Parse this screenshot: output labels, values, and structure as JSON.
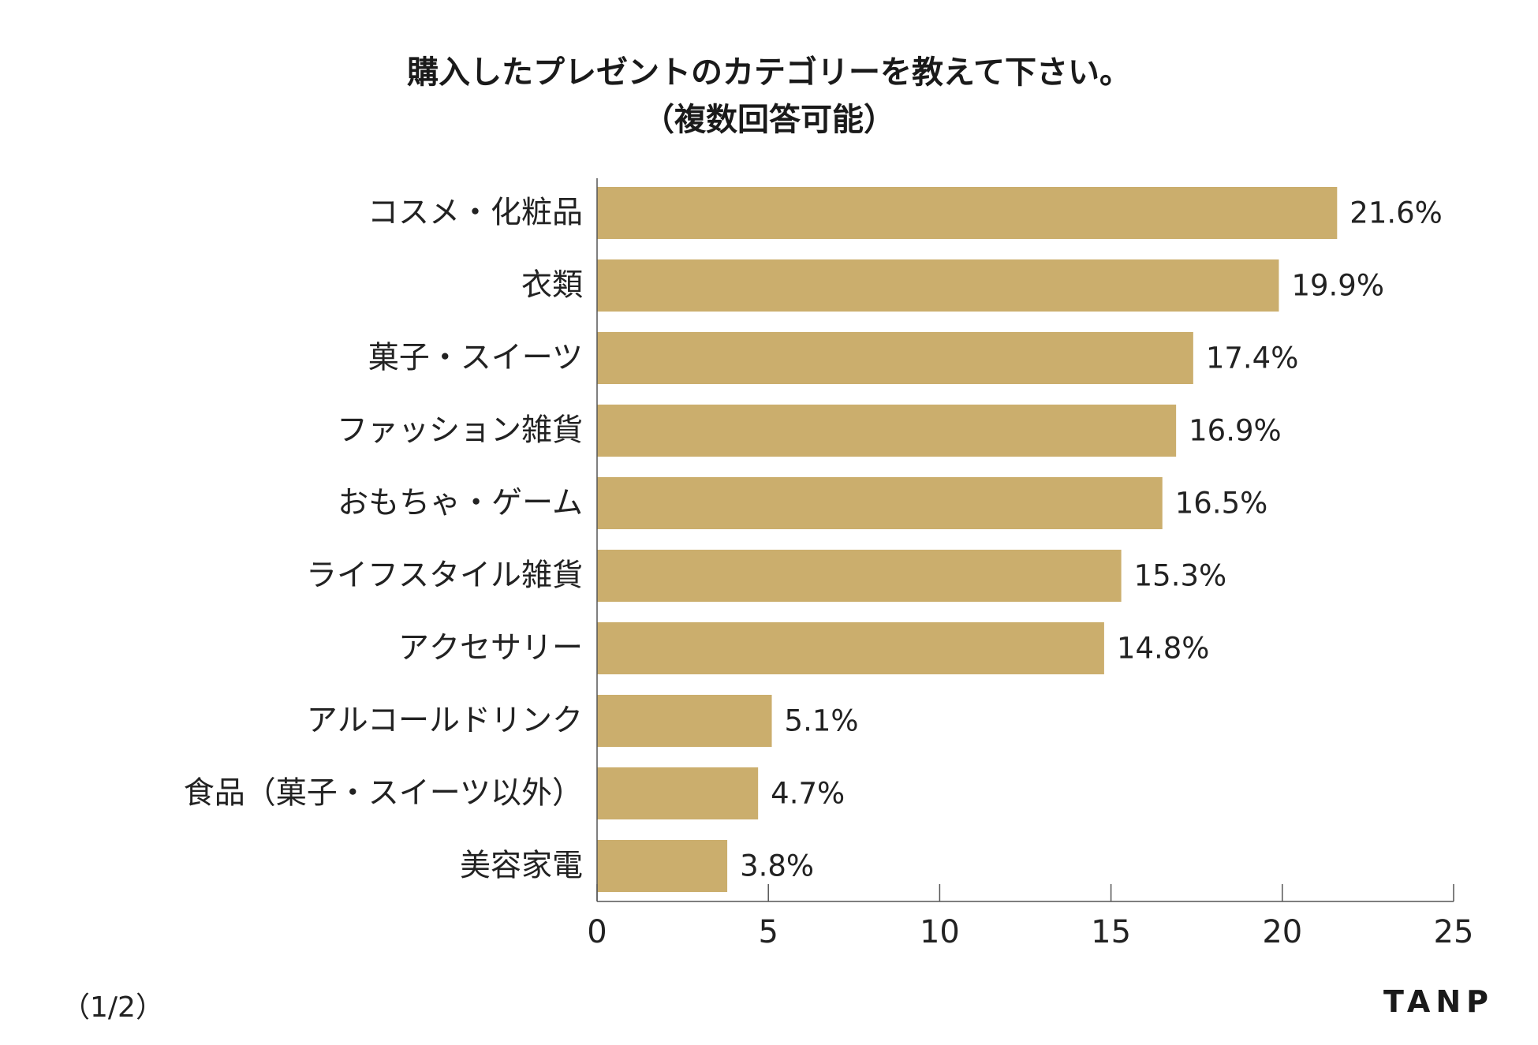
{
  "chart_data": {
    "type": "bar",
    "orientation": "horizontal",
    "title": "購入したプレゼントのカテゴリーを教えて下さい。",
    "subtitle": "（複数回答可能）",
    "categories": [
      "コスメ・化粧品",
      "衣類",
      "菓子・スイーツ",
      "ファッション雑貨",
      "おもちゃ・ゲーム",
      "ライフスタイル雑貨",
      "アクセサリー",
      "アルコールドリンク",
      "食品（菓子・スイーツ以外）",
      "美容家電"
    ],
    "values": [
      21.6,
      19.9,
      17.4,
      16.9,
      16.5,
      15.3,
      14.8,
      5.1,
      4.7,
      3.8
    ],
    "value_labels": [
      "21.6%",
      "19.9%",
      "17.4%",
      "16.9%",
      "16.5%",
      "15.3%",
      "14.8%",
      "5.1%",
      "4.7%",
      "3.8%"
    ],
    "xlim": [
      0,
      25
    ],
    "xticks": [
      "0",
      "5",
      "10",
      "15",
      "20",
      "25"
    ],
    "xtick_values": [
      0,
      5,
      10,
      15,
      20,
      25
    ],
    "grid": false,
    "bar_color": "#cbae6d",
    "axis_color": "#555555"
  },
  "footer": {
    "page_indicator": "（1/2）",
    "logo": "TANP"
  }
}
